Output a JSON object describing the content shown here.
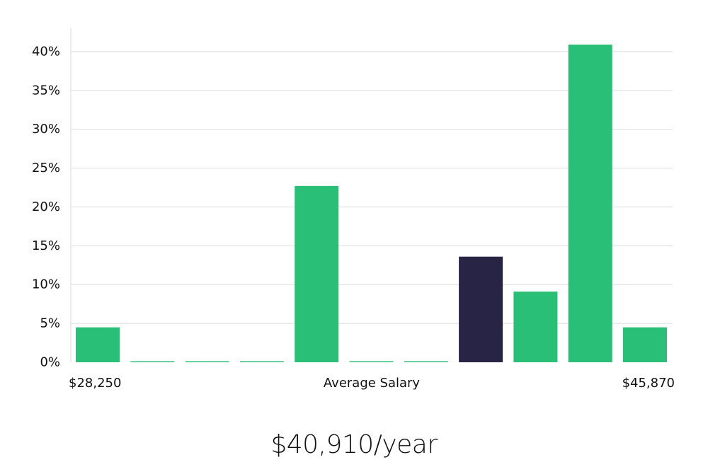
{
  "chart_data": {
    "type": "bar",
    "xlabel": "Average Salary",
    "x_min_label": "$28,250",
    "x_max_label": "$45,870",
    "ylim": [
      0,
      43
    ],
    "y_ticks": [
      0,
      5,
      10,
      15,
      20,
      25,
      30,
      35,
      40
    ],
    "y_tick_labels": [
      "0%",
      "5%",
      "10%",
      "15%",
      "20%",
      "25%",
      "30%",
      "35%",
      "40%"
    ],
    "grid": "horizontal",
    "bar_count": 11,
    "values": [
      4.5,
      0,
      0,
      0,
      22.7,
      0,
      0,
      13.6,
      9.1,
      40.9,
      4.5
    ],
    "highlight_index": 7,
    "colors": {
      "bar": "#29bf76",
      "highlight": "#272446"
    }
  },
  "summary": {
    "salary_text": "$40,910/year"
  }
}
